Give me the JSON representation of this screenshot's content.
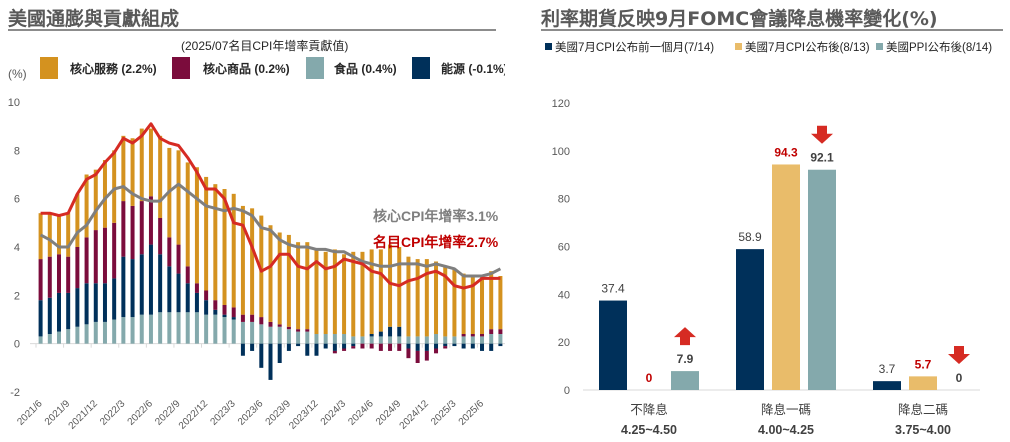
{
  "left_panel": {
    "title": "美國通膨與貢獻組成",
    "subtitle": "(2025/07名目CPI年增率貢獻值)",
    "unit": "(%)",
    "legend": [
      {
        "label": "核心服務 (2.2%)",
        "color": "#D4921F"
      },
      {
        "label": "核心商品 (0.2%)",
        "color": "#7B0C3C"
      },
      {
        "label": "食品 (0.4%)",
        "color": "#84A9AC"
      },
      {
        "label": "能源 (-0.1%)",
        "color": "#00305A"
      }
    ],
    "annotations": [
      {
        "text": "核心CPI年增率3.1%",
        "color": "#7F7F7F"
      },
      {
        "text": "名目CPI年增率2.7%",
        "color": "#C00000"
      }
    ]
  },
  "right_panel": {
    "title": "利率期貨反映9月FOMC會議降息機率變化(%)",
    "legend": [
      {
        "label": "美國7月CPI公布前一個月(7/14)",
        "color": "#00305A"
      },
      {
        "label": "美國7月CPI公布後(8/13)",
        "color": "#E9BC6A"
      },
      {
        "label": "美國PPI公布後(8/14)",
        "color": "#84A9AC"
      }
    ]
  },
  "chart_data": [
    {
      "type": "bar",
      "stacked": true,
      "title": "美國通膨與貢獻組成",
      "subtitle": "(2025/07名目CPI年增率貢獻值)",
      "ylabel": "(%)",
      "ylim": [
        -2,
        10
      ],
      "yticks": [
        -2,
        0,
        2,
        4,
        6,
        8,
        10
      ],
      "xtick_labels": [
        "2021/6",
        "2021/9",
        "2021/12",
        "2022/3",
        "2022/6",
        "2022/9",
        "2022/12",
        "2023/3",
        "2023/6",
        "2023/9",
        "2023/12",
        "2024/3",
        "2024/6",
        "2024/9",
        "2024/12",
        "2025/3",
        "2025/6"
      ],
      "x_start": "2021/6",
      "x_end": "2025/7",
      "legend_position": "top",
      "series": [
        {
          "name": "能源",
          "color": "#00305A",
          "values": [
            1.5,
            1.5,
            1.6,
            1.5,
            1.6,
            1.7,
            1.6,
            1.6,
            1.7,
            2.5,
            2.4,
            2.5,
            2.9,
            2.4,
            1.9,
            1.6,
            1.2,
            0.8,
            0.6,
            0.2,
            0.1,
            0.1,
            -0.5,
            -0.3,
            -1.0,
            -1.5,
            -0.8,
            -0.3,
            -0.1,
            -0.5,
            -0.5,
            -0.2,
            -0.3,
            -0.2,
            -0.1,
            0.0,
            0.1,
            0.2,
            0.4,
            0.4,
            -0.2,
            -0.3,
            -0.3,
            -0.2,
            -0.1,
            -0.1,
            -0.2,
            -0.2,
            -0.3,
            -0.3,
            -0.1
          ]
        },
        {
          "name": "食品",
          "color": "#84A9AC",
          "values": [
            0.3,
            0.4,
            0.5,
            0.6,
            0.7,
            0.8,
            0.9,
            0.9,
            1.0,
            1.1,
            1.1,
            1.2,
            1.2,
            1.3,
            1.3,
            1.3,
            1.3,
            1.3,
            1.2,
            1.2,
            1.1,
            1.0,
            0.9,
            0.9,
            0.8,
            0.7,
            0.7,
            0.6,
            0.5,
            0.5,
            0.4,
            0.4,
            0.4,
            0.4,
            0.3,
            0.3,
            0.3,
            0.3,
            0.3,
            0.3,
            0.3,
            0.3,
            0.3,
            0.4,
            0.3,
            0.3,
            0.3,
            0.3,
            0.3,
            0.4,
            0.4
          ]
        },
        {
          "name": "核心商品",
          "color": "#7B0C3C",
          "values": [
            1.7,
            1.7,
            1.6,
            1.5,
            1.7,
            1.9,
            2.2,
            2.3,
            2.3,
            2.3,
            2.2,
            2.2,
            2.0,
            1.5,
            1.2,
            1.2,
            0.7,
            0.4,
            0.4,
            0.4,
            0.4,
            0.4,
            0.3,
            0.3,
            0.3,
            0.2,
            0.1,
            0.1,
            0.1,
            0.1,
            0.0,
            0.0,
            -0.1,
            -0.1,
            -0.1,
            -0.2,
            -0.2,
            -0.3,
            -0.3,
            -0.3,
            -0.4,
            -0.5,
            -0.4,
            -0.2,
            -0.1,
            0.0,
            0.1,
            0.1,
            0.1,
            0.2,
            0.2
          ]
        },
        {
          "name": "核心服務",
          "color": "#D4921F",
          "values": [
            1.9,
            1.8,
            1.6,
            1.8,
            2.2,
            2.6,
            2.5,
            2.8,
            3.0,
            2.7,
            2.8,
            3.0,
            2.8,
            3.4,
            3.7,
            3.9,
            4.3,
            4.8,
            4.7,
            4.8,
            4.8,
            4.7,
            4.5,
            4.4,
            4.2,
            4.0,
            3.8,
            3.8,
            3.6,
            3.6,
            3.5,
            3.4,
            3.5,
            3.3,
            3.5,
            3.5,
            3.5,
            3.4,
            3.4,
            3.3,
            3.3,
            3.2,
            3.2,
            3.0,
            2.9,
            2.8,
            2.5,
            2.4,
            2.4,
            2.4,
            2.2
          ]
        },
        {
          "name": "名目CPI年增率",
          "type": "line",
          "color": "#D62B23",
          "values": [
            5.4,
            5.4,
            5.3,
            5.4,
            6.2,
            6.8,
            7.0,
            7.5,
            7.9,
            8.5,
            8.3,
            8.6,
            9.1,
            8.5,
            8.3,
            8.2,
            7.7,
            7.1,
            6.4,
            6.4,
            6.0,
            5.0,
            4.9,
            4.0,
            3.0,
            3.2,
            3.7,
            3.7,
            3.2,
            3.1,
            3.4,
            3.1,
            3.2,
            3.5,
            3.4,
            3.3,
            3.0,
            2.9,
            2.5,
            2.4,
            2.6,
            2.7,
            2.9,
            3.0,
            2.8,
            2.4,
            2.3,
            2.4,
            2.7,
            2.7,
            2.7
          ]
        },
        {
          "name": "核心CPI年增率",
          "type": "line",
          "color": "#7F7F7F",
          "values": [
            4.5,
            4.3,
            4.0,
            4.0,
            4.6,
            4.9,
            5.5,
            6.0,
            6.4,
            6.5,
            6.2,
            6.0,
            5.9,
            5.9,
            6.3,
            6.6,
            6.3,
            6.0,
            5.7,
            5.6,
            5.5,
            5.6,
            5.5,
            5.3,
            4.8,
            4.7,
            4.3,
            4.1,
            4.0,
            4.0,
            3.9,
            3.9,
            3.8,
            3.8,
            3.6,
            3.4,
            3.3,
            3.2,
            3.2,
            3.3,
            3.3,
            3.3,
            3.2,
            3.3,
            3.2,
            3.1,
            2.8,
            2.8,
            2.8,
            2.9,
            3.1
          ]
        }
      ]
    },
    {
      "type": "bar",
      "title": "利率期貨反映9月FOMC會議降息機率變化(%)",
      "ylim": [
        0,
        120
      ],
      "yticks": [
        0,
        20,
        40,
        60,
        80,
        100,
        120
      ],
      "categories": [
        [
          "不降息",
          "4.25~4.50"
        ],
        [
          "降息一碼",
          "4.00~4.25"
        ],
        [
          "降息二碼",
          "3.75~4.00"
        ]
      ],
      "legend_position": "top",
      "series": [
        {
          "name": "美國7月CPI公布前一個月(7/14)",
          "color": "#00305A",
          "values": [
            37.4,
            58.9,
            3.7
          ],
          "label_color": "#404040"
        },
        {
          "name": "美國7月CPI公布後(8/13)",
          "color": "#E9BC6A",
          "values": [
            0,
            94.3,
            5.7
          ],
          "label_color": "#C00000"
        },
        {
          "name": "美國PPI公布後(8/14)",
          "color": "#84A9AC",
          "values": [
            7.9,
            92.1,
            0
          ],
          "label_color": "#404040"
        }
      ],
      "arrows": [
        {
          "category": 0,
          "series": 2,
          "direction": "up",
          "color": "#D62B23"
        },
        {
          "category": 1,
          "series": 2,
          "direction": "down",
          "color": "#D62B23"
        },
        {
          "category": 2,
          "series": 2,
          "direction": "down",
          "color": "#D62B23"
        }
      ]
    }
  ]
}
